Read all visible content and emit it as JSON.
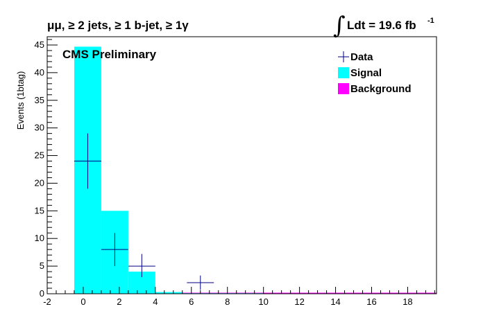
{
  "chart_data": {
    "type": "bar",
    "title": "μμ, ≥ 2 jets, ≥ 1 b-jet, ≥ 1γ",
    "annotation": "CMS Preliminary",
    "lumi_text": "Ldt = 19.6 fb",
    "lumi_exp": "-1",
    "lumi_integral": "∫",
    "xlabel": "",
    "ylabel": "Events (1btag)",
    "xlim": [
      -2,
      19.6
    ],
    "ylim": [
      0,
      46.5
    ],
    "xticks": [
      -2,
      0,
      2,
      4,
      6,
      8,
      10,
      12,
      14,
      16,
      18
    ],
    "yticks": [
      0,
      5,
      10,
      15,
      20,
      25,
      30,
      35,
      40,
      45
    ],
    "legend_position": "top-right",
    "legend": [
      {
        "label": "Data",
        "style": "marker",
        "color": "#000080"
      },
      {
        "label": "Signal",
        "style": "fill",
        "color": "#00ffff"
      },
      {
        "label": "Background",
        "style": "fill",
        "color": "#ff00ff"
      }
    ],
    "series": [
      {
        "name": "Signal",
        "color": "#00ffff",
        "bin_edges": [
          -0.5,
          1.0,
          2.5,
          4.0,
          5.5,
          7.0,
          8.5,
          10.0,
          11.5,
          13.0,
          14.5
        ],
        "values": [
          44.7,
          15.0,
          4.0,
          0.3,
          0.1,
          0.1,
          0.1,
          0.05,
          0.05,
          0.05
        ]
      },
      {
        "name": "Background",
        "color": "#ff00ff",
        "bin_edges": [
          -0.5,
          1.0,
          2.5,
          4.0,
          5.5,
          7.0,
          8.5,
          10.0,
          11.5,
          13.0,
          14.5,
          16.0,
          17.5,
          19.0,
          19.6
        ],
        "values": [
          0.05,
          0.05,
          0.05,
          0.05,
          0.05,
          0.05,
          0.05,
          0.05,
          0.05,
          0.05,
          0.05,
          0.05,
          0.05,
          0.05
        ]
      },
      {
        "name": "Data",
        "color": "#000080",
        "points": [
          {
            "x": 0.25,
            "y": 24,
            "xerr": 0.75,
            "ylow": 19,
            "yhigh": 29
          },
          {
            "x": 1.75,
            "y": 8,
            "xerr": 0.75,
            "ylow": 5,
            "yhigh": 11
          },
          {
            "x": 3.25,
            "y": 5,
            "xerr": 0.75,
            "ylow": 3,
            "yhigh": 7.2
          },
          {
            "x": 6.5,
            "y": 2,
            "xerr": 0.75,
            "ylow": 0.7,
            "yhigh": 3.3
          }
        ]
      }
    ]
  }
}
